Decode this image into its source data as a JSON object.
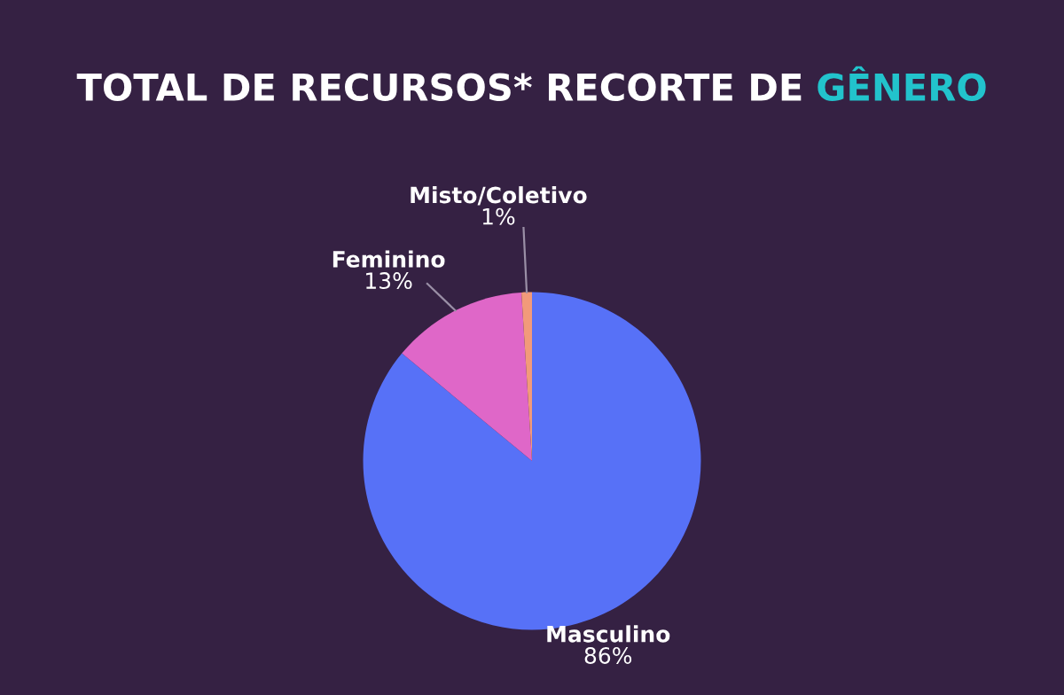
{
  "chart_data": {
    "type": "pie",
    "title": "TOTAL DE RECURSOS* RECORTE DE GÊNERO",
    "categories": [
      "Masculino",
      "Feminino",
      "Misto/Coletivo"
    ],
    "values": [
      86,
      13,
      1
    ],
    "colors": [
      "#5771f7",
      "#df67c8",
      "#f29a7a"
    ],
    "value_labels": [
      "86%",
      "13%",
      "1%"
    ]
  }
}
